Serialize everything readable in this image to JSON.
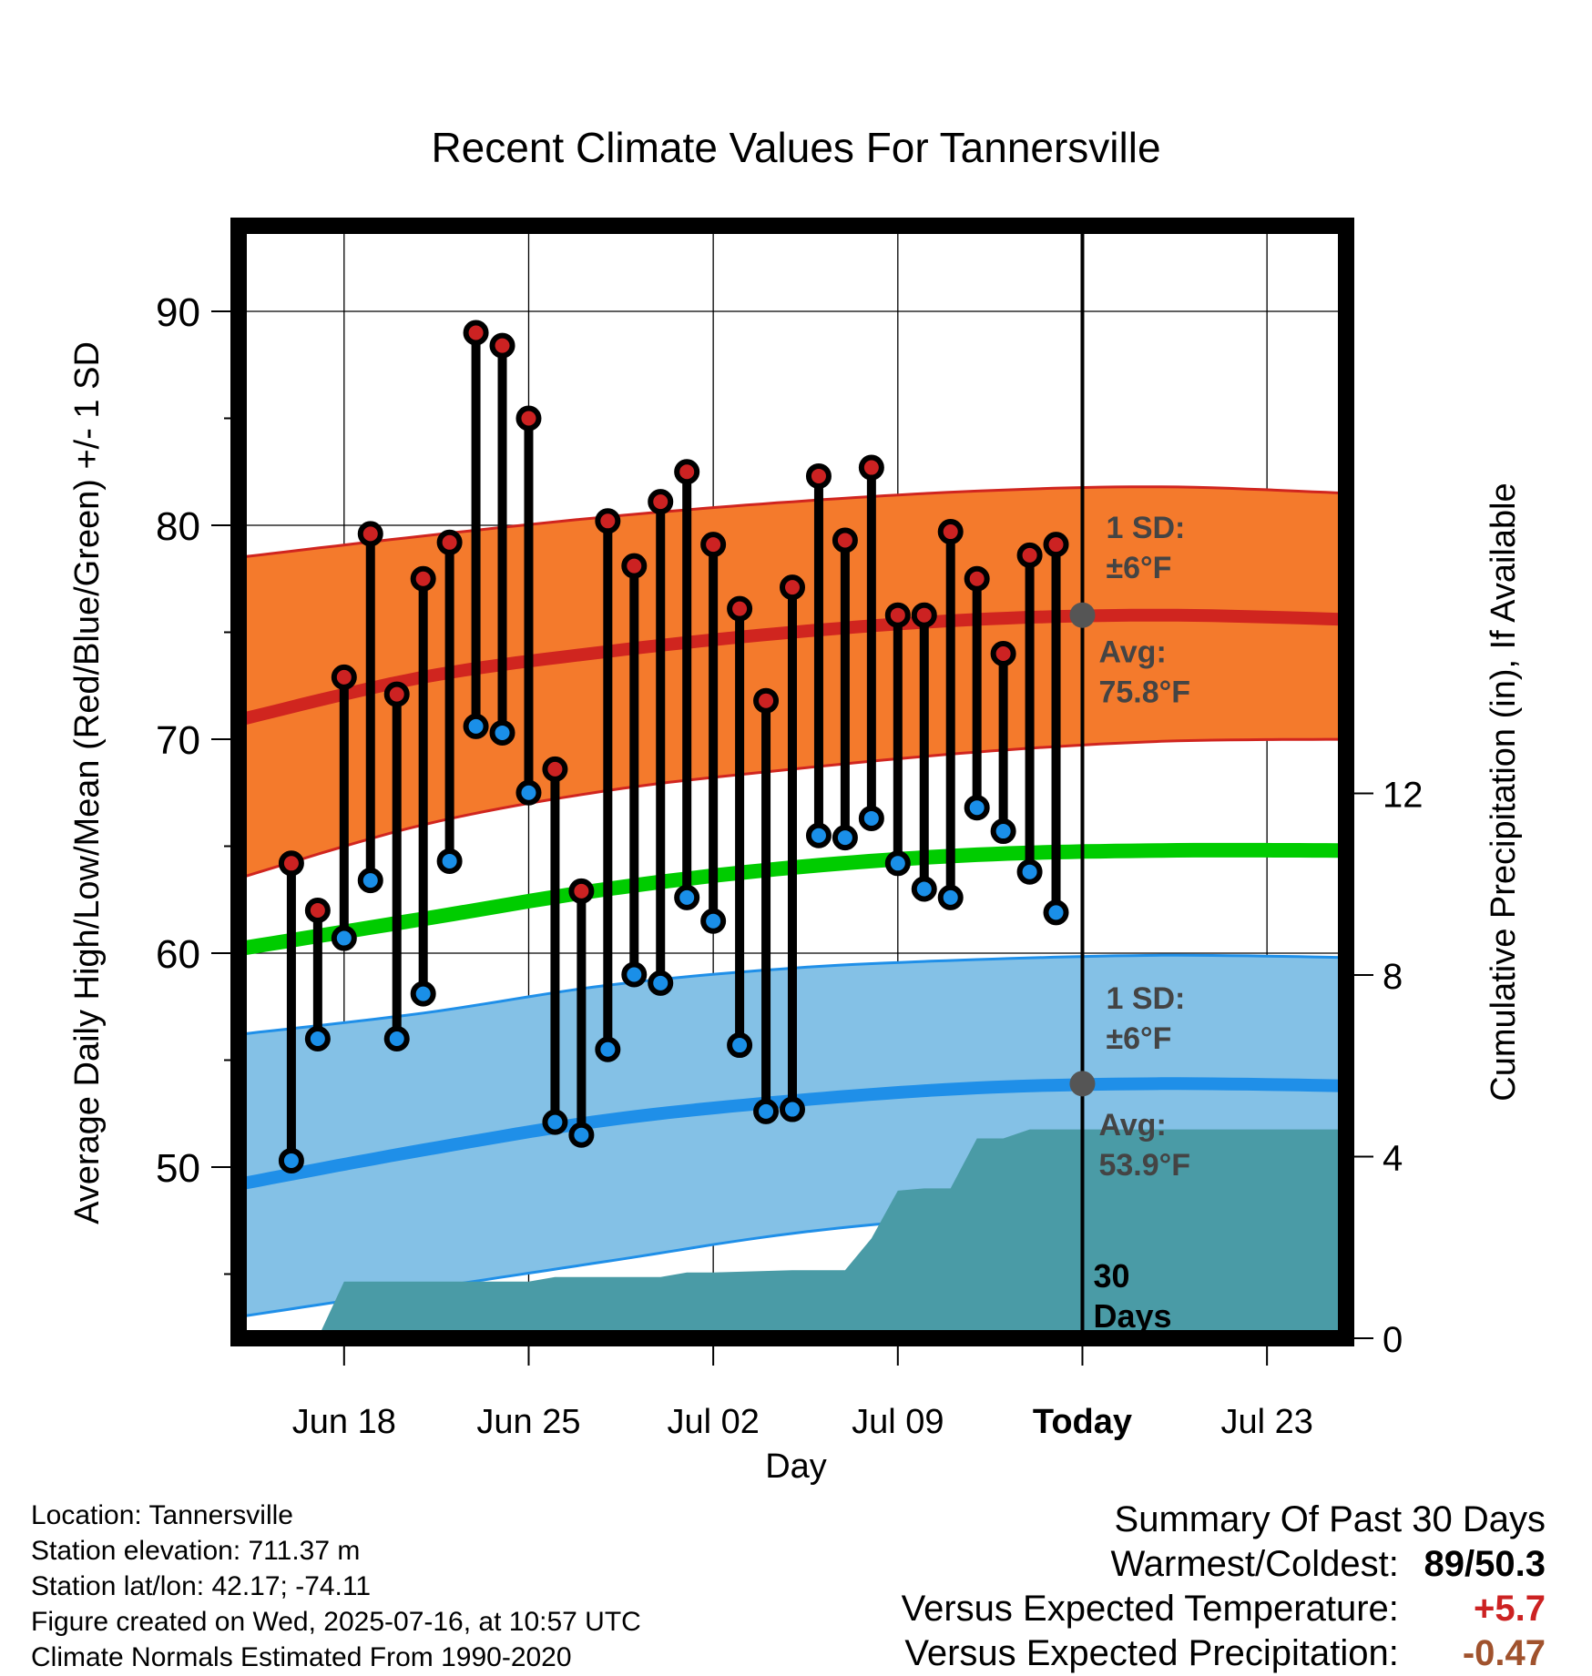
{
  "chart_data": {
    "type": "line",
    "title": "Recent Climate Values For Tannersville",
    "xlabel": "Day",
    "ylabel": "Average Daily High/Low/Mean (Red/Blue/Green) +/- 1 SD",
    "y2label": "Cumulative Precipitation (in), If Available",
    "x_domain": [
      "2025-06-14",
      "2025-07-26"
    ],
    "x_ticks": [
      {
        "date": "2025-06-18",
        "label": "Jun 18"
      },
      {
        "date": "2025-06-25",
        "label": "Jun 25"
      },
      {
        "date": "2025-07-02",
        "label": "Jul 02"
      },
      {
        "date": "2025-07-09",
        "label": "Jul 09"
      },
      {
        "date": "2025-07-16",
        "label": "Today"
      },
      {
        "date": "2025-07-23",
        "label": "Jul 23"
      }
    ],
    "ylim": [
      42,
      94
    ],
    "y_ticks": [
      50,
      60,
      70,
      80,
      90
    ],
    "y2lim": [
      0,
      24.5
    ],
    "y2_ticks": [
      0,
      4,
      8,
      12
    ],
    "grid": true,
    "today": "2025-07-16",
    "today_label": "30\nDays",
    "observed": {
      "dates": [
        "2025-06-16",
        "2025-06-17",
        "2025-06-18",
        "2025-06-19",
        "2025-06-20",
        "2025-06-21",
        "2025-06-22",
        "2025-06-23",
        "2025-06-24",
        "2025-06-25",
        "2025-06-26",
        "2025-06-27",
        "2025-06-28",
        "2025-06-29",
        "2025-06-30",
        "2025-07-01",
        "2025-07-02",
        "2025-07-03",
        "2025-07-04",
        "2025-07-05",
        "2025-07-06",
        "2025-07-07",
        "2025-07-08",
        "2025-07-09",
        "2025-07-10",
        "2025-07-11",
        "2025-07-12",
        "2025-07-13",
        "2025-07-14",
        "2025-07-15"
      ],
      "high": [
        64.2,
        62.0,
        72.9,
        79.6,
        72.1,
        77.5,
        79.2,
        89.0,
        88.4,
        85.0,
        68.6,
        62.9,
        80.2,
        78.1,
        81.1,
        82.5,
        79.1,
        76.1,
        71.8,
        77.1,
        82.3,
        79.3,
        82.7,
        75.8,
        75.8,
        79.7,
        77.5,
        74.0,
        78.6,
        79.1
      ],
      "low": [
        50.3,
        56.0,
        60.7,
        63.4,
        56.0,
        58.1,
        64.3,
        70.6,
        70.3,
        67.5,
        52.1,
        51.5,
        55.5,
        59.0,
        58.6,
        62.6,
        61.5,
        55.7,
        52.6,
        52.7,
        65.5,
        65.4,
        66.3,
        64.2,
        63.0,
        62.6,
        66.8,
        65.7,
        63.8,
        61.9
      ]
    },
    "normal_curve_dates": [
      "2025-06-14",
      "2025-06-21",
      "2025-06-28",
      "2025-07-05",
      "2025-07-12",
      "2025-07-19",
      "2025-07-26"
    ],
    "normal_high_avg": [
      70.9,
      72.9,
      74.1,
      75.0,
      75.6,
      75.8,
      75.6
    ],
    "normal_high_upper": [
      78.5,
      79.5,
      80.4,
      81.1,
      81.6,
      81.8,
      81.5
    ],
    "normal_high_lower": [
      63.5,
      66.0,
      67.6,
      68.6,
      69.4,
      69.9,
      70.0
    ],
    "normal_mean": [
      60.2,
      61.6,
      63.0,
      64.0,
      64.6,
      64.8,
      64.8
    ],
    "normal_low_avg": [
      49.2,
      50.8,
      52.2,
      53.1,
      53.7,
      53.9,
      53.8
    ],
    "normal_low_upper": [
      56.2,
      57.2,
      58.5,
      59.3,
      59.7,
      59.9,
      59.8
    ],
    "normal_low_lower": [
      43.0,
      44.3,
      45.6,
      46.9,
      47.7,
      48.0,
      48.0
    ],
    "precip_cumulative": {
      "dates": [
        "2025-06-14",
        "2025-06-16",
        "2025-06-17",
        "2025-06-18",
        "2025-06-21",
        "2025-06-25",
        "2025-06-26",
        "2025-06-30",
        "2025-07-01",
        "2025-07-02",
        "2025-07-05",
        "2025-07-06",
        "2025-07-07",
        "2025-07-08",
        "2025-07-09",
        "2025-07-10",
        "2025-07-11",
        "2025-07-12",
        "2025-07-13",
        "2025-07-14",
        "2025-07-26"
      ],
      "values": [
        0.0,
        0.0,
        0.0,
        1.25,
        1.25,
        1.25,
        1.35,
        1.35,
        1.45,
        1.45,
        1.5,
        1.5,
        1.5,
        2.2,
        3.25,
        3.3,
        3.3,
        4.4,
        4.4,
        4.6,
        4.6
      ]
    },
    "annotations": {
      "high_sd": [
        "1 SD:",
        "±6°F"
      ],
      "high_avg": [
        "Avg:",
        "75.8°F"
      ],
      "low_sd": [
        "1 SD:",
        "±6°F"
      ],
      "low_avg": [
        "Avg:",
        "53.9°F"
      ],
      "high_avg_value": 75.8,
      "low_avg_value": 53.9
    },
    "colors": {
      "high_band": "#f47a2c",
      "high_line": "#d0251f",
      "low_band": "#84c1e6",
      "low_line": "#1f8fe8",
      "mean_line": "#00cc00",
      "precip": "#4a9ba6",
      "high_marker": "#cc2222",
      "low_marker": "#1a8fe8",
      "annotation": "#444444"
    }
  },
  "footer": {
    "location": "Location: Tannersville",
    "elevation": "Station elevation: 711.37 m",
    "latlon": "Station lat/lon: 42.17; -74.11",
    "created": "Figure created on Wed, 2025-07-16, at 10:57 UTC",
    "normals": "Climate Normals Estimated From 1990-2020"
  },
  "summary": {
    "title": "Summary Of Past 30 Days",
    "warmest_label": "Warmest/Coldest:",
    "warmest_value": "89/50.3",
    "temp_label": "Versus Expected Temperature:",
    "temp_value": "+5.7",
    "temp_color": "#cc2222",
    "precip_label": "Versus Expected Precipitation:",
    "precip_value": "-0.47",
    "precip_color": "#a0522d"
  }
}
